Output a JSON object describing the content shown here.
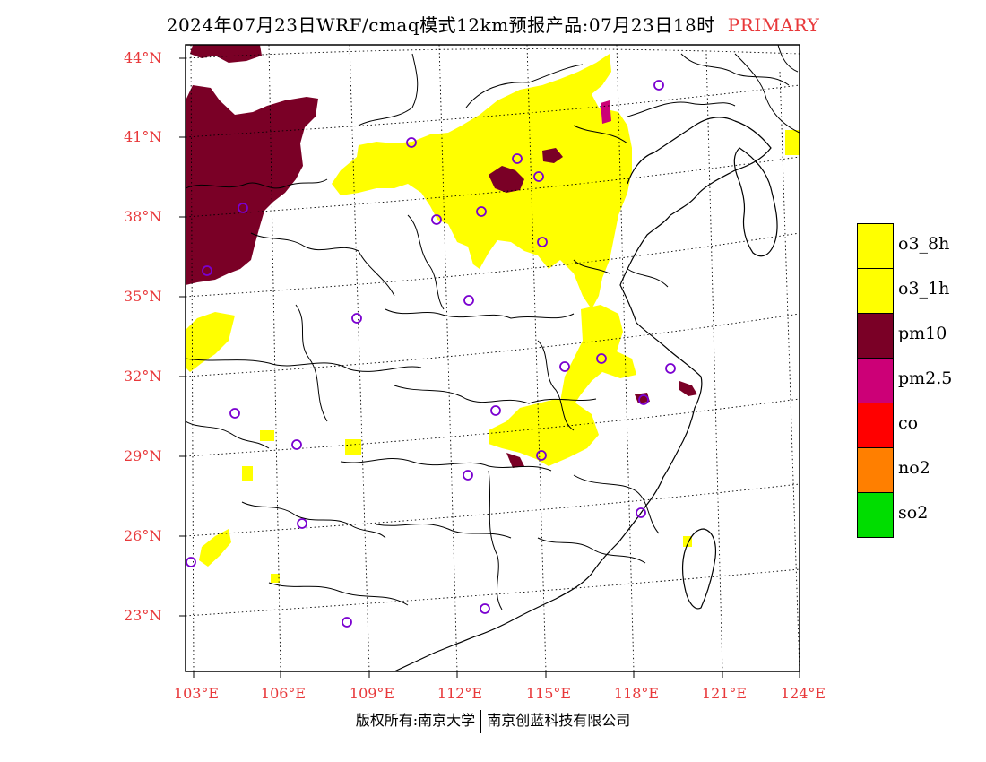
{
  "title": {
    "main": "2024年07月23日WRF/cmaq模式12km预报产品:07月23日18时",
    "tag": "PRIMARY"
  },
  "axes": {
    "lat_labels": [
      "44°N",
      "41°N",
      "38°N",
      "35°N",
      "32°N",
      "29°N",
      "26°N",
      "23°N"
    ],
    "lon_labels": [
      "103°E",
      "106°E",
      "109°E",
      "112°E",
      "115°E",
      "118°E",
      "121°E",
      "124°E"
    ]
  },
  "legend": [
    {
      "label": "o3_8h",
      "color": "#ffff00"
    },
    {
      "label": "o3_1h",
      "color": "#ffff00"
    },
    {
      "label": "pm10",
      "color": "#7a0026"
    },
    {
      "label": "pm2.5",
      "color": "#cc0077"
    },
    {
      "label": "co",
      "color": "#ff0000"
    },
    {
      "label": "no2",
      "color": "#ff7f00"
    },
    {
      "label": "so2",
      "color": "#00dd00"
    }
  ],
  "credit": {
    "left": "版权所有:南京大学",
    "right": "南京创蓝科技有限公司"
  },
  "colors": {
    "tick_red": "#e8383a",
    "station_circle": "#7a00d0"
  }
}
